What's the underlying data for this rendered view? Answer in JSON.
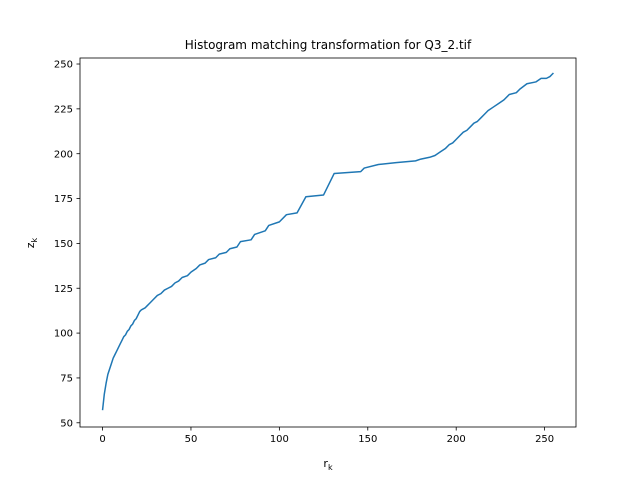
{
  "chart_data": {
    "type": "line",
    "title": "Histogram matching transformation for Q3_2.tif",
    "xlabel_main": "r",
    "xlabel_sub": "k",
    "ylabel_main": "z",
    "ylabel_sub": "k",
    "xlim": [
      -12.75,
      267.75
    ],
    "ylim": [
      47.65,
      253.35
    ],
    "xticks": [
      0,
      50,
      100,
      150,
      200,
      250
    ],
    "yticks": [
      50,
      75,
      100,
      125,
      150,
      175,
      200,
      225,
      250
    ],
    "grid": false,
    "series": [
      {
        "color": "#1f77b4",
        "points": [
          [
            0,
            57
          ],
          [
            1,
            66
          ],
          [
            2,
            72
          ],
          [
            3,
            77
          ],
          [
            4,
            80
          ],
          [
            5,
            83
          ],
          [
            6,
            86
          ],
          [
            7,
            88
          ],
          [
            8,
            90
          ],
          [
            9,
            92
          ],
          [
            10,
            94
          ],
          [
            11,
            96
          ],
          [
            12,
            98
          ],
          [
            13,
            99
          ],
          [
            14,
            101
          ],
          [
            15,
            102
          ],
          [
            16,
            104
          ],
          [
            17,
            105
          ],
          [
            18,
            107
          ],
          [
            19,
            108
          ],
          [
            20,
            110
          ],
          [
            21,
            112
          ],
          [
            22,
            113
          ],
          [
            24,
            114
          ],
          [
            25,
            115
          ],
          [
            27,
            117
          ],
          [
            29,
            119
          ],
          [
            31,
            121
          ],
          [
            33,
            122
          ],
          [
            35,
            124
          ],
          [
            37,
            125
          ],
          [
            39,
            126
          ],
          [
            41,
            128
          ],
          [
            43,
            129
          ],
          [
            45,
            131
          ],
          [
            48,
            132
          ],
          [
            50,
            134
          ],
          [
            53,
            136
          ],
          [
            55,
            138
          ],
          [
            58,
            139
          ],
          [
            60,
            141
          ],
          [
            64,
            142
          ],
          [
            66,
            144
          ],
          [
            70,
            145
          ],
          [
            72,
            147
          ],
          [
            76,
            148
          ],
          [
            78,
            151
          ],
          [
            84,
            152
          ],
          [
            86,
            155
          ],
          [
            92,
            157
          ],
          [
            94,
            160
          ],
          [
            100,
            162
          ],
          [
            104,
            166
          ],
          [
            110,
            167
          ],
          [
            115,
            176
          ],
          [
            125,
            177
          ],
          [
            131,
            189
          ],
          [
            146,
            190
          ],
          [
            148,
            192
          ],
          [
            156,
            194
          ],
          [
            166,
            195
          ],
          [
            177,
            196
          ],
          [
            180,
            197
          ],
          [
            185,
            198
          ],
          [
            188,
            199
          ],
          [
            191,
            201
          ],
          [
            194,
            203
          ],
          [
            196,
            205
          ],
          [
            198,
            206
          ],
          [
            200,
            208
          ],
          [
            202,
            210
          ],
          [
            204,
            212
          ],
          [
            206,
            213
          ],
          [
            208,
            215
          ],
          [
            210,
            217
          ],
          [
            212,
            218
          ],
          [
            214,
            220
          ],
          [
            216,
            222
          ],
          [
            218,
            224
          ],
          [
            221,
            226
          ],
          [
            224,
            228
          ],
          [
            227,
            230
          ],
          [
            230,
            233
          ],
          [
            234,
            234
          ],
          [
            236,
            236
          ],
          [
            240,
            239
          ],
          [
            245,
            240
          ],
          [
            248,
            242
          ],
          [
            251,
            242
          ],
          [
            253,
            243
          ],
          [
            254,
            244
          ],
          [
            255,
            245
          ]
        ]
      }
    ]
  }
}
